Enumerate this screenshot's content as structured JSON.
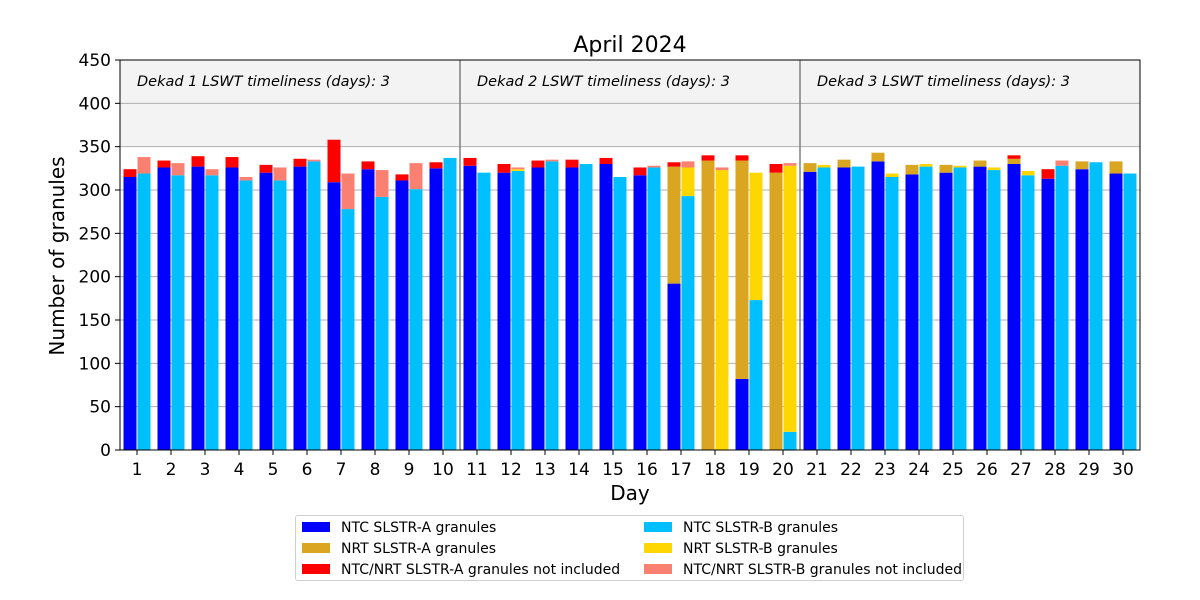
{
  "chart_data": {
    "type": "bar",
    "title": "April 2024",
    "xlabel": "Day",
    "ylabel": "Number of granules",
    "ylim": [
      0,
      450
    ],
    "yticks": [
      0,
      50,
      100,
      150,
      200,
      250,
      300,
      350,
      400,
      450
    ],
    "categories": [
      "1",
      "2",
      "3",
      "4",
      "5",
      "6",
      "7",
      "8",
      "9",
      "10",
      "11",
      "12",
      "13",
      "14",
      "15",
      "16",
      "17",
      "18",
      "19",
      "20",
      "21",
      "22",
      "23",
      "24",
      "25",
      "26",
      "27",
      "28",
      "29",
      "30"
    ],
    "grid": true,
    "legend_position": "bottom-center",
    "annotations": [
      "Dekad 1 LSWT timeliness (days): 3",
      "Dekad 2 LSWT timeliness (days): 3",
      "Dekad 3 LSWT timeliness (days): 3"
    ],
    "dekad_boundaries_after_day": [
      10,
      20
    ],
    "header_band_ylim": [
      350,
      450
    ],
    "series": [
      {
        "name": "NTC SLSTR-A granules",
        "group": "A",
        "color": "#0000ff",
        "values": [
          315,
          326,
          327,
          326,
          320,
          327,
          309,
          324,
          311,
          325,
          328,
          320,
          326,
          326,
          330,
          317,
          192,
          0,
          82,
          0,
          321,
          326,
          333,
          318,
          320,
          327,
          330,
          313,
          324,
          319
        ]
      },
      {
        "name": "NRT SLSTR-A granules",
        "group": "A",
        "color": "#daa520",
        "values": [
          0,
          0,
          0,
          0,
          0,
          0,
          0,
          0,
          0,
          0,
          0,
          0,
          0,
          0,
          0,
          0,
          135,
          334,
          252,
          320,
          10,
          9,
          10,
          11,
          9,
          7,
          6,
          0,
          9,
          14
        ]
      },
      {
        "name": "NTC/NRT SLSTR-A granules not included",
        "group": "A",
        "color": "#ff0000",
        "values": [
          9,
          8,
          12,
          12,
          9,
          9,
          49,
          9,
          7,
          7,
          9,
          10,
          8,
          9,
          7,
          9,
          5,
          6,
          6,
          10,
          0,
          0,
          0,
          0,
          0,
          0,
          4,
          11,
          0,
          0
        ]
      },
      {
        "name": "NTC SLSTR-B granules",
        "group": "B",
        "color": "#00bfff",
        "values": [
          319,
          317,
          317,
          311,
          311,
          333,
          278,
          292,
          301,
          337,
          320,
          322,
          333,
          330,
          315,
          326,
          293,
          0,
          173,
          21,
          326,
          327,
          315,
          327,
          326,
          323,
          317,
          328,
          332,
          319
        ]
      },
      {
        "name": "NRT SLSTR-B granules",
        "group": "B",
        "color": "#ffd700",
        "values": [
          0,
          0,
          0,
          0,
          0,
          0,
          0,
          0,
          0,
          0,
          0,
          2,
          0,
          0,
          0,
          0,
          33,
          323,
          147,
          307,
          3,
          0,
          4,
          3,
          2,
          3,
          5,
          0,
          0,
          0
        ]
      },
      {
        "name": "NTC/NRT SLSTR-B granules not included",
        "group": "B",
        "color": "#fa8072",
        "values": [
          19,
          14,
          7,
          4,
          15,
          2,
          41,
          31,
          30,
          0,
          0,
          2,
          2,
          0,
          0,
          2,
          7,
          3,
          0,
          3,
          0,
          0,
          0,
          0,
          0,
          0,
          0,
          6,
          0,
          0
        ]
      }
    ]
  }
}
